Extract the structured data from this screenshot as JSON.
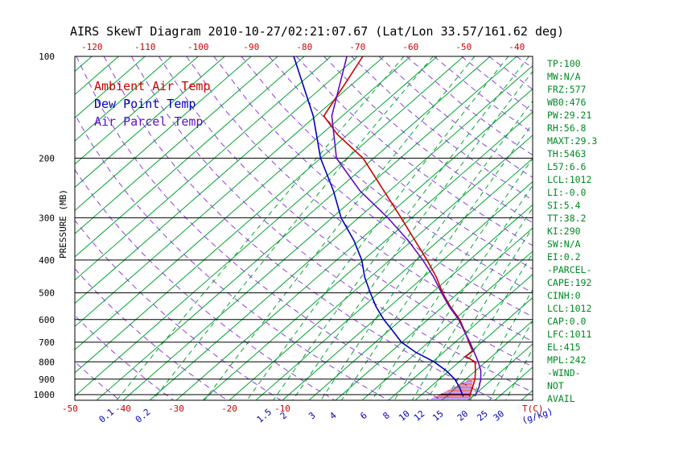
{
  "title": "AIRS SkewT Diagram 2010-10-27/02:21:07.67 (Lat/Lon 33.57/161.62 deg)",
  "legend": {
    "ambient": {
      "label": "Ambient Air Temp",
      "color": "#cc0000"
    },
    "dewpoint": {
      "label": "Dew Point Temp",
      "color": "#0000bb"
    },
    "parcel": {
      "label": "Air Parcel Temp",
      "color": "#5c10c0"
    }
  },
  "colors": {
    "red": "#cc0000",
    "blue": "#0000bb",
    "green_line": "#00a532",
    "green_text": "#008a22",
    "violet_line": "#8c3fe0",
    "violet_curve": "#5c10c0",
    "black": "#000000"
  },
  "axes": {
    "y_title": "PRESSURE (MB)",
    "x_title_temp": "T(C)",
    "x_title_mixing": "(g/kg)",
    "pressure_ticks": [
      100,
      200,
      300,
      400,
      500,
      600,
      700,
      800,
      900,
      1000
    ],
    "top_temp_ticks": [
      -120,
      -110,
      -100,
      -90,
      -80,
      -70,
      -60,
      -50,
      -40
    ],
    "bottom_temp_ticks": [
      -50,
      -40,
      -30,
      -20,
      -10
    ],
    "mixing_ratio_labels": [
      0.1,
      0.2,
      1.5,
      2,
      3,
      4,
      6,
      8,
      10,
      12,
      15,
      20,
      25,
      30
    ]
  },
  "stats_panel": {
    "lines": [
      "TP:100",
      "MW:N/A",
      "FRZ:577",
      "WB0:476",
      "PW:29.21",
      "RH:56.8",
      "MAXT:29.3",
      "TH:5463",
      "L57:6.6",
      "LCL:1012",
      "LI:-0.0",
      "SI:5.4",
      "TT:38.2",
      "KI:290",
      "SW:N/A",
      "EI:0.2",
      "-PARCEL-",
      "CAPE:192",
      "CINH:0",
      "LCL:1012",
      "CAP:0.0",
      "LFC:1011",
      "EL:415",
      "MPL:242",
      "-WIND-",
      "NOT",
      "AVAIL"
    ]
  },
  "chart_data": {
    "type": "line",
    "subtype": "skew-t-log-p",
    "title": "AIRS SkewT Diagram 2010-10-27/02:21:07.67 (Lat/Lon 33.57/161.62 deg)",
    "xlabel": "Temperature (C) / Mixing Ratio (g/kg)",
    "ylabel": "Pressure (MB)",
    "y_scale": "log",
    "y_range_mb": [
      100,
      1040
    ],
    "x_range_at_surface_c": [
      -52,
      36
    ],
    "series": [
      {
        "id": "ambient-air-temp",
        "name": "Ambient Air Temp",
        "color": "#cc0000",
        "points": [
          [
            100,
            -69
          ],
          [
            120,
            -66.5
          ],
          [
            150,
            -63.5
          ],
          [
            170,
            -57
          ],
          [
            200,
            -47
          ],
          [
            250,
            -36
          ],
          [
            300,
            -27
          ],
          [
            350,
            -19.5
          ],
          [
            400,
            -13
          ],
          [
            450,
            -7.5
          ],
          [
            500,
            -3
          ],
          [
            550,
            1.5
          ],
          [
            600,
            6
          ],
          [
            650,
            9.5
          ],
          [
            700,
            12.6
          ],
          [
            745,
            15.3
          ],
          [
            770,
            15.0
          ],
          [
            800,
            18
          ],
          [
            850,
            20
          ],
          [
            900,
            21.7
          ],
          [
            950,
            23
          ],
          [
            1012,
            24.4
          ]
        ]
      },
      {
        "id": "dew-point-temp",
        "name": "Dew Point Temp",
        "color": "#0000bb",
        "points": [
          [
            100,
            -82
          ],
          [
            150,
            -65.5
          ],
          [
            200,
            -55
          ],
          [
            250,
            -45.5
          ],
          [
            300,
            -38.3
          ],
          [
            350,
            -31
          ],
          [
            400,
            -25.3
          ],
          [
            450,
            -21
          ],
          [
            500,
            -16.6
          ],
          [
            550,
            -12.5
          ],
          [
            600,
            -8.3
          ],
          [
            650,
            -4
          ],
          [
            700,
            -0.1
          ],
          [
            750,
            4.8
          ],
          [
            800,
            10.3
          ],
          [
            850,
            14.5
          ],
          [
            900,
            17.9
          ],
          [
            950,
            20.5
          ],
          [
            1012,
            23.2
          ]
        ]
      },
      {
        "id": "air-parcel-temp",
        "name": "Air Parcel Temp",
        "color": "#5c10c0",
        "points": [
          [
            100,
            -72
          ],
          [
            150,
            -62
          ],
          [
            200,
            -52
          ],
          [
            250,
            -40.5
          ],
          [
            300,
            -29.5
          ],
          [
            350,
            -20.8
          ],
          [
            400,
            -13.8
          ],
          [
            450,
            -8
          ],
          [
            500,
            -3.2
          ],
          [
            550,
            1.3
          ],
          [
            600,
            5.8
          ],
          [
            650,
            9.4
          ],
          [
            700,
            12.8
          ],
          [
            750,
            15.8
          ],
          [
            800,
            18.6
          ],
          [
            850,
            21
          ],
          [
            900,
            22.8
          ],
          [
            950,
            24.2
          ],
          [
            1012,
            25.4
          ]
        ]
      }
    ],
    "background": {
      "isotherms_c": {
        "min": -130,
        "max": 45,
        "step": 5
      },
      "dry_adiabats_k": {
        "min": 220,
        "max": 460,
        "step": 10
      },
      "mixing_ratio_lines_gkg": [
        0.1,
        0.2,
        0.5,
        1,
        1.5,
        2,
        3,
        4,
        6,
        8,
        10,
        12,
        15,
        20,
        25,
        30
      ],
      "pressure_lines_mb": [
        100,
        200,
        300,
        400,
        500,
        600,
        700,
        800,
        900,
        1000
      ]
    },
    "cape_area_polygon": [
      [
        890,
        21.0
      ],
      [
        1038,
        17.5
      ],
      [
        1038,
        25.4
      ]
    ]
  }
}
